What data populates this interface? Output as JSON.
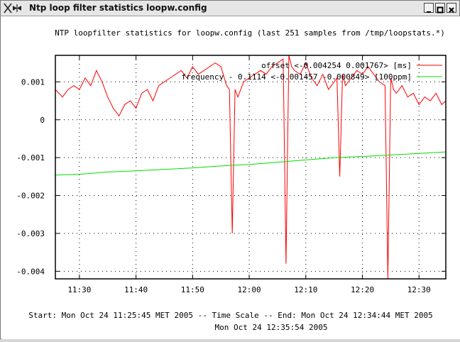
{
  "window": {
    "title": "Ntp loop filter statistics loopw.config"
  },
  "plot": {
    "heading": "NTP loopfilter statistics for loopw.config  (last 251 samples from /tmp/loopstats.*)",
    "footer_line1": "Start:  Mon Oct 24 11:25:45 MET 2005    --   Time Scale   --    End:  Mon Oct 24 12:34:44 MET 2005",
    "footer_line2": "Mon Oct 24 12:35:54 2005"
  },
  "colors": {
    "offset": "#ff0000",
    "frequency": "#00dd00",
    "grid": "#000000"
  },
  "chart_data": {
    "type": "line",
    "x_unit": "time of day (Mon Oct 24 2005)",
    "xlim": [
      "11:25:45",
      "12:34:44"
    ],
    "ylim": [
      -0.0042,
      0.0017
    ],
    "xticks": [
      "11:30",
      "11:40",
      "11:50",
      "12:00",
      "12:10",
      "12:20",
      "12:30"
    ],
    "yticks": [
      "0.001",
      "0",
      "-0.001",
      "-0.002",
      "-0.003",
      "-0.004"
    ],
    "grid": true,
    "legend_position": "top-right",
    "series": [
      {
        "name": "offset  <-0.004254 0.001767>   [ms]",
        "key": "offset",
        "x": [
          "11:25:45",
          "11:27",
          "11:28",
          "11:29",
          "11:30",
          "11:31",
          "11:32",
          "11:33",
          "11:34",
          "11:35",
          "11:36",
          "11:37",
          "11:38",
          "11:39",
          "11:40",
          "11:41",
          "11:42",
          "11:43",
          "11:44",
          "11:45",
          "11:46",
          "11:47",
          "11:48",
          "11:49",
          "11:50",
          "11:51",
          "11:52",
          "11:53",
          "11:54",
          "11:55",
          "11:56",
          "11:56:30",
          "11:57",
          "11:57:30",
          "11:58",
          "11:59",
          "12:00",
          "12:01",
          "12:02",
          "12:03",
          "12:04",
          "12:05",
          "12:06",
          "12:06:30",
          "12:07",
          "12:07:30",
          "12:08",
          "12:09",
          "12:10",
          "12:11",
          "12:12",
          "12:13",
          "12:14",
          "12:15",
          "12:15:30",
          "12:16",
          "12:16:30",
          "12:17",
          "12:18",
          "12:19",
          "12:20",
          "12:21",
          "12:22",
          "12:23",
          "12:24",
          "12:24:30",
          "12:25",
          "12:25:30",
          "12:26",
          "12:27",
          "12:28",
          "12:29",
          "12:30",
          "12:31",
          "12:32",
          "12:33",
          "12:34",
          "12:34:44"
        ],
        "y": [
          0.0008,
          0.0006,
          0.0008,
          0.0009,
          0.0008,
          0.0011,
          0.0009,
          0.0013,
          0.001,
          0.0006,
          0.0003,
          0.0001,
          0.0004,
          0.0005,
          0.0003,
          0.0007,
          0.0008,
          0.0005,
          0.0009,
          0.001,
          0.0011,
          0.0012,
          0.0013,
          0.0011,
          0.0014,
          0.0012,
          0.0013,
          0.0014,
          0.0015,
          0.0014,
          0.0009,
          0.0008,
          -0.003,
          0.0008,
          0.0006,
          0.001,
          0.0011,
          0.0012,
          0.0013,
          0.0012,
          0.0014,
          0.0015,
          0.0016,
          -0.0038,
          0.0017,
          0.0014,
          0.0013,
          0.0012,
          0.0015,
          0.0011,
          0.0009,
          0.0012,
          0.0008,
          0.001,
          0.0011,
          -0.0015,
          0.0012,
          0.0009,
          0.0011,
          0.0013,
          0.0012,
          0.0014,
          0.0012,
          0.001,
          0.0009,
          -0.0042,
          0.0011,
          0.0008,
          0.0007,
          0.0009,
          0.0006,
          0.0007,
          0.0004,
          0.0006,
          0.0005,
          0.0007,
          0.0004,
          0.0005
        ]
      },
      {
        "name": "frequency - 0.1114  <-0.001457 -0.000849> [100ppm]",
        "key": "frequency",
        "x": [
          "11:25:45",
          "11:30",
          "11:35",
          "11:40",
          "11:45",
          "11:50",
          "11:55",
          "12:00",
          "12:05",
          "12:10",
          "12:15",
          "12:20",
          "12:25",
          "12:30",
          "12:34:44"
        ],
        "y": [
          -0.00146,
          -0.00144,
          -0.00138,
          -0.00135,
          -0.00131,
          -0.00127,
          -0.00122,
          -0.00118,
          -0.00112,
          -0.00106,
          -0.001,
          -0.00097,
          -0.00093,
          -0.00089,
          -0.00085
        ]
      }
    ]
  }
}
